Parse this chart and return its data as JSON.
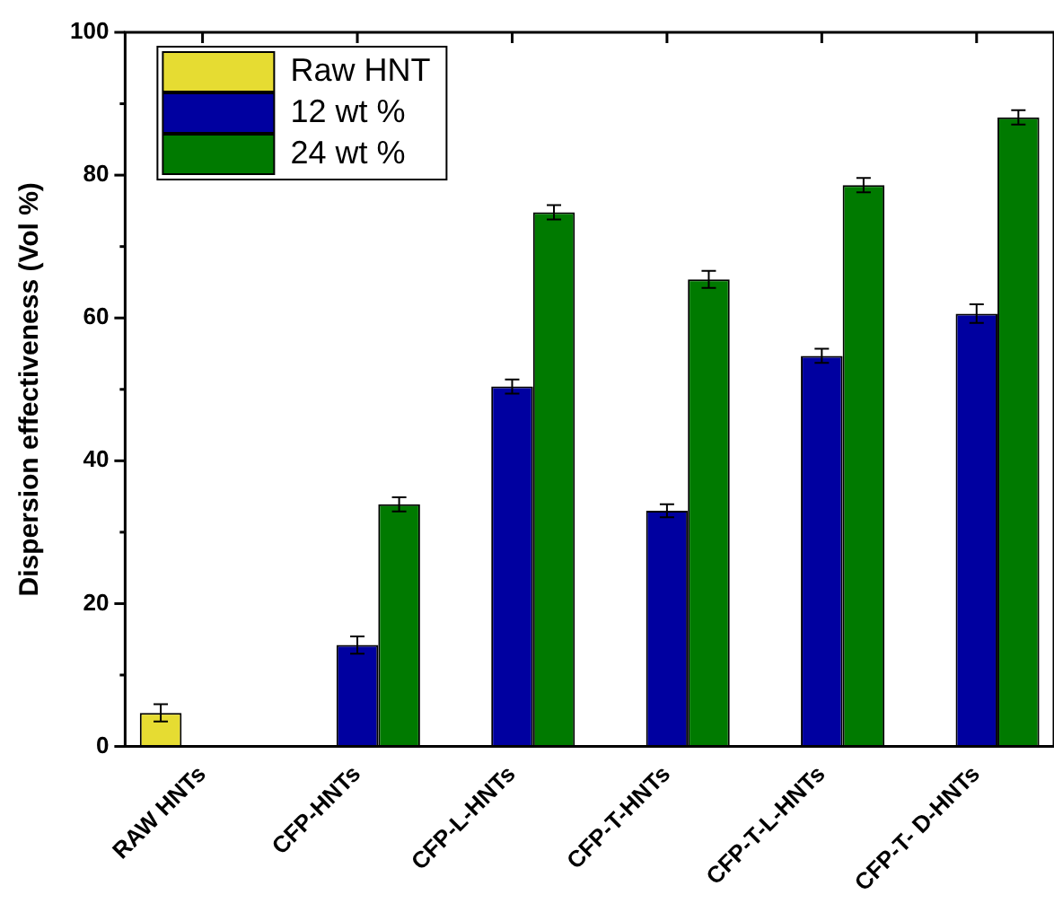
{
  "chart_data": {
    "type": "bar",
    "ylabel": "Dispersion effectiveness (Vol %)",
    "categories": [
      "RAW HNTs",
      "CFP-HNTs",
      "CFP-L-HNTs",
      "CFP-T-HNTs",
      "CFP-T-L-HNTs",
      "CFP-T- D-HNTs"
    ],
    "series": [
      {
        "name": "Raw HNT",
        "color": "#e6dc32",
        "values": [
          4.7,
          null,
          null,
          null,
          null,
          null
        ],
        "errors": [
          1.2,
          null,
          null,
          null,
          null,
          null
        ]
      },
      {
        "name": "12 wt %",
        "color": "#0000a0",
        "values": [
          null,
          14.2,
          50.4,
          33.0,
          54.7,
          60.6
        ],
        "errors": [
          null,
          1.2,
          1.0,
          0.9,
          1.0,
          1.3
        ]
      },
      {
        "name": "24 wt %",
        "color": "#007a00",
        "values": [
          null,
          33.9,
          74.8,
          65.4,
          78.6,
          88.1
        ],
        "errors": [
          null,
          1.0,
          1.0,
          1.2,
          1.0,
          1.0
        ]
      }
    ],
    "ylim": [
      0,
      100
    ],
    "yticks": [
      0,
      {
        "value": 10,
        "label": null
      },
      20,
      {
        "value": 30,
        "label": null
      },
      40,
      {
        "value": 50,
        "label": null
      },
      60,
      {
        "value": 70,
        "label": null
      },
      80,
      {
        "value": 90,
        "label": null
      },
      100
    ],
    "grid": false,
    "legend": "top left"
  }
}
